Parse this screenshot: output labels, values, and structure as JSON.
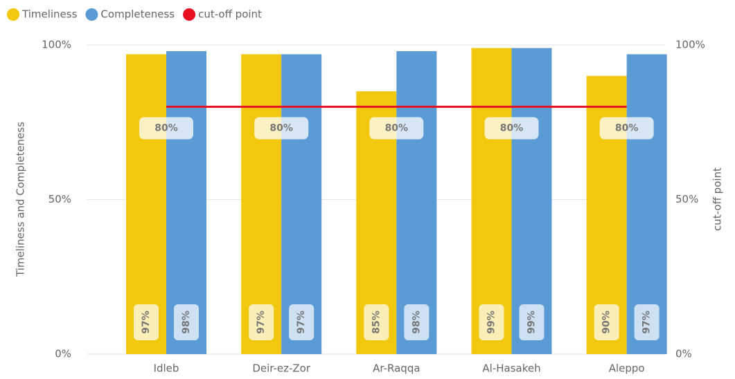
{
  "chart_data": {
    "type": "bar",
    "categories": [
      "Idleb",
      "Deir-ez-Zor",
      "Ar-Raqqa",
      "Al-Hasakeh",
      "Aleppo"
    ],
    "series": [
      {
        "name": "Timeliness",
        "color": "#F2C80F",
        "values": [
          97,
          97,
          85,
          99,
          90
        ],
        "value_labels": [
          "97%",
          "97%",
          "85%",
          "99%",
          "90%"
        ]
      },
      {
        "name": "Completeness",
        "color": "#5B9BD5",
        "values": [
          98,
          97,
          98,
          99,
          97
        ],
        "value_labels": [
          "98%",
          "97%",
          "98%",
          "99%",
          "97%"
        ]
      },
      {
        "name": "cut-off point",
        "color": "#E81123",
        "type": "line",
        "axis": "y2",
        "values": [
          80,
          80,
          80,
          80,
          80
        ],
        "value_labels": [
          "80%",
          "80%",
          "80%",
          "80%",
          "80%"
        ]
      }
    ],
    "ylabel": "Timeliness and Completeness",
    "y2label": "cut-off point",
    "ylim": [
      0,
      100
    ],
    "yticks": [
      {
        "value": 0,
        "label": "0%"
      },
      {
        "value": 50,
        "label": "50%"
      },
      {
        "value": 100,
        "label": "100%"
      }
    ],
    "y2lim": [
      0,
      100
    ],
    "y2ticks": [
      {
        "value": 0,
        "label": "0%"
      },
      {
        "value": 50,
        "label": "50%"
      },
      {
        "value": 100,
        "label": "100%"
      }
    ],
    "grid": true,
    "legend": "top-left"
  }
}
